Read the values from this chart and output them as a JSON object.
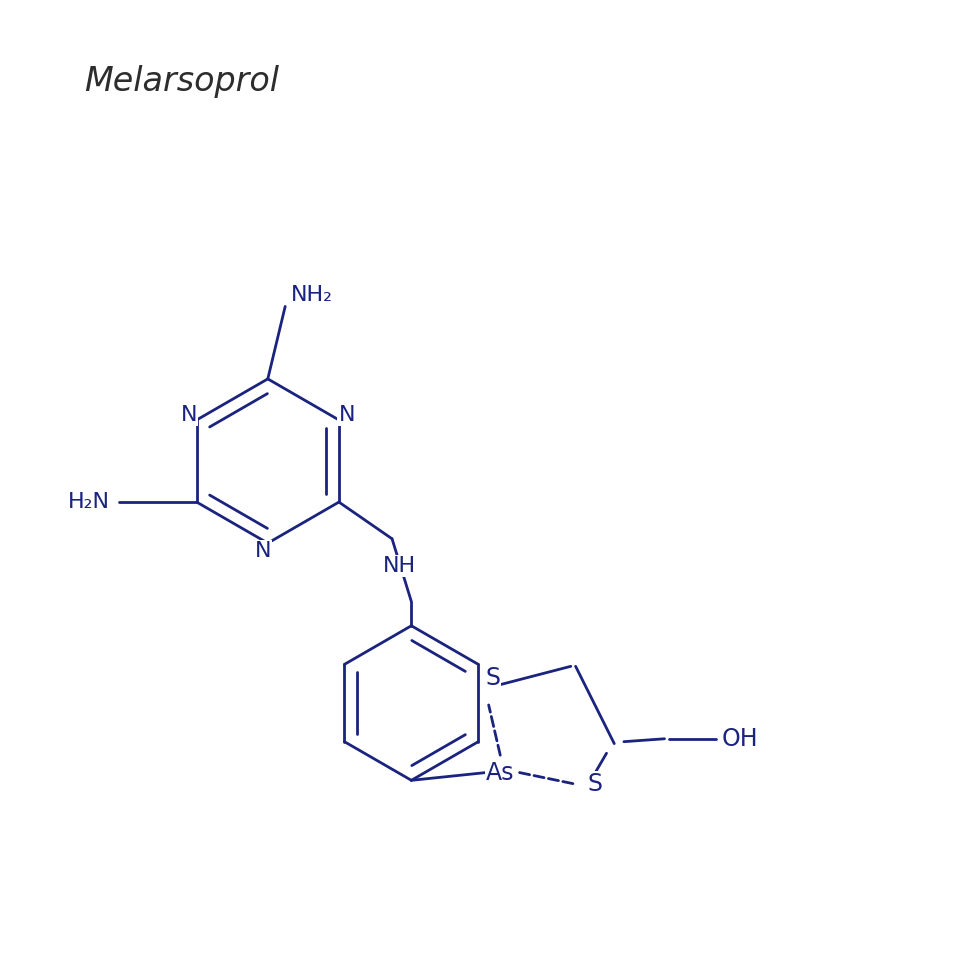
{
  "title": "Melarsoprol",
  "title_color": "#2d2d2d",
  "bond_color": "#1a237e",
  "label_color": "#1a237e",
  "background_color": "#ffffff",
  "figsize": [
    9.8,
    9.8
  ],
  "dpi": 100,
  "line_width": 2.0,
  "font_size_atom": 16,
  "font_size_title": 24,
  "xlim": [
    0,
    10
  ],
  "ylim": [
    0,
    10
  ]
}
